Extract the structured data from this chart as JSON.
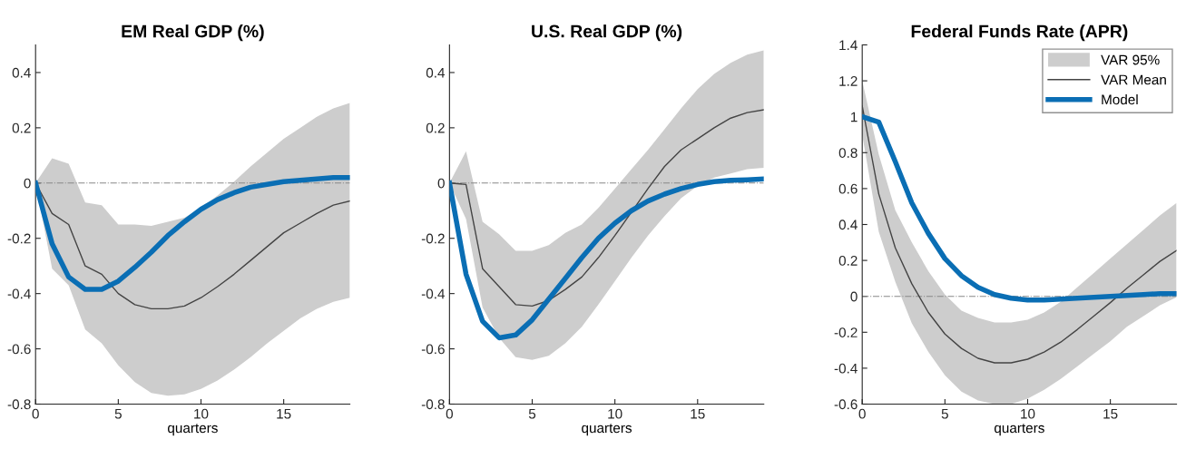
{
  "chart_data": [
    {
      "type": "line",
      "title": "EM Real GDP (%)",
      "xlabel": "quarters",
      "x": [
        0,
        1,
        2,
        3,
        4,
        5,
        6,
        7,
        8,
        9,
        10,
        11,
        12,
        13,
        14,
        15,
        16,
        17,
        18,
        19
      ],
      "xlim": [
        0,
        19
      ],
      "xticks": [
        0,
        5,
        10,
        15
      ],
      "ylim": [
        -0.8,
        0.5
      ],
      "yticks": [
        -0.8,
        -0.6,
        -0.4,
        -0.2,
        0,
        0.2,
        0.4
      ],
      "grid": false,
      "legend": false,
      "ref_lines": [
        {
          "axis": "y",
          "value": 0,
          "color": "#888888",
          "line_style": "dashdot"
        }
      ],
      "series": [
        {
          "color": "#444444",
          "values": [
            0,
            -0.11,
            -0.15,
            -0.3,
            -0.33,
            -0.4,
            -0.44,
            -0.455,
            -0.455,
            -0.445,
            -0.415,
            -0.375,
            -0.33,
            -0.28,
            -0.23,
            -0.18,
            -0.145,
            -0.11,
            -0.08,
            -0.065
          ],
          "lower": [
            0,
            -0.31,
            -0.37,
            -0.53,
            -0.58,
            -0.66,
            -0.72,
            -0.76,
            -0.77,
            -0.765,
            -0.745,
            -0.715,
            -0.675,
            -0.63,
            -0.58,
            -0.535,
            -0.49,
            -0.455,
            -0.43,
            -0.415
          ],
          "upper": [
            0,
            0.09,
            0.07,
            -0.07,
            -0.08,
            -0.15,
            -0.15,
            -0.155,
            -0.14,
            -0.125,
            -0.09,
            -0.045,
            0.005,
            0.06,
            0.11,
            0.16,
            0.2,
            0.24,
            0.27,
            0.29
          ]
        },
        {
          "color": "#0a6eb4",
          "values": [
            0,
            -0.22,
            -0.34,
            -0.385,
            -0.385,
            -0.355,
            -0.305,
            -0.25,
            -0.19,
            -0.14,
            -0.095,
            -0.06,
            -0.035,
            -0.015,
            -0.005,
            0.005,
            0.01,
            0.015,
            0.02,
            0.02
          ]
        }
      ]
    },
    {
      "type": "line",
      "title": "U.S. Real GDP (%)",
      "xlabel": "quarters",
      "x": [
        0,
        1,
        2,
        3,
        4,
        5,
        6,
        7,
        8,
        9,
        10,
        11,
        12,
        13,
        14,
        15,
        16,
        17,
        18,
        19
      ],
      "xlim": [
        0,
        19
      ],
      "xticks": [
        0,
        5,
        10,
        15
      ],
      "ylim": [
        -0.8,
        0.5
      ],
      "yticks": [
        -0.8,
        -0.6,
        -0.4,
        -0.2,
        0,
        0.2,
        0.4
      ],
      "grid": false,
      "legend": false,
      "ref_lines": [
        {
          "axis": "y",
          "value": 0,
          "color": "#888888",
          "line_style": "dashdot"
        }
      ],
      "series": [
        {
          "color": "#444444",
          "values": [
            0,
            -0.005,
            -0.31,
            -0.375,
            -0.44,
            -0.445,
            -0.425,
            -0.385,
            -0.34,
            -0.27,
            -0.19,
            -0.105,
            -0.02,
            0.06,
            0.12,
            0.16,
            0.2,
            0.235,
            0.255,
            0.265
          ],
          "lower": [
            0,
            -0.13,
            -0.45,
            -0.56,
            -0.63,
            -0.64,
            -0.625,
            -0.58,
            -0.52,
            -0.44,
            -0.355,
            -0.27,
            -0.19,
            -0.12,
            -0.055,
            -0.01,
            0.02,
            0.035,
            0.05,
            0.055
          ],
          "upper": [
            0,
            0.115,
            -0.14,
            -0.185,
            -0.245,
            -0.245,
            -0.225,
            -0.18,
            -0.15,
            -0.09,
            -0.02,
            0.05,
            0.12,
            0.195,
            0.27,
            0.34,
            0.395,
            0.435,
            0.465,
            0.48
          ]
        },
        {
          "color": "#0a6eb4",
          "values": [
            0,
            -0.33,
            -0.5,
            -0.56,
            -0.55,
            -0.495,
            -0.42,
            -0.345,
            -0.27,
            -0.2,
            -0.145,
            -0.1,
            -0.065,
            -0.04,
            -0.02,
            -0.005,
            0.005,
            0.01,
            0.012,
            0.015
          ]
        }
      ]
    },
    {
      "type": "line",
      "title": "Federal Funds Rate (APR)",
      "xlabel": "quarters",
      "x": [
        0,
        1,
        2,
        3,
        4,
        5,
        6,
        7,
        8,
        9,
        10,
        11,
        12,
        13,
        14,
        15,
        16,
        17,
        18,
        19
      ],
      "xlim": [
        0,
        19
      ],
      "xticks": [
        0,
        5,
        10,
        15
      ],
      "ylim": [
        -0.6,
        1.4
      ],
      "yticks": [
        -0.6,
        -0.4,
        -0.2,
        0,
        0.2,
        0.4,
        0.6,
        0.8,
        1,
        1.2,
        1.4
      ],
      "grid": false,
      "legend": "top right",
      "annotations": [
        "VAR 95%"
      ],
      "ref_lines": [
        {
          "axis": "y",
          "value": 0,
          "color": "#888888",
          "line_style": "dashdot"
        }
      ],
      "series": [
        {
          "name": "VAR Mean",
          "color": "#444444",
          "values": [
            1.06,
            0.57,
            0.27,
            0.07,
            -0.09,
            -0.21,
            -0.29,
            -0.345,
            -0.37,
            -0.37,
            -0.35,
            -0.31,
            -0.255,
            -0.185,
            -0.11,
            -0.035,
            0.045,
            0.12,
            0.195,
            0.255
          ],
          "lower": [
            0.9,
            0.36,
            0.08,
            -0.15,
            -0.31,
            -0.44,
            -0.53,
            -0.58,
            -0.6,
            -0.6,
            -0.57,
            -0.52,
            -0.46,
            -0.39,
            -0.32,
            -0.25,
            -0.17,
            -0.11,
            -0.05,
            -0.005
          ],
          "upper": [
            1.2,
            0.79,
            0.48,
            0.3,
            0.14,
            0.01,
            -0.08,
            -0.12,
            -0.145,
            -0.145,
            -0.13,
            -0.09,
            -0.03,
            0.05,
            0.13,
            0.21,
            0.29,
            0.37,
            0.45,
            0.52
          ]
        },
        {
          "name": "Model",
          "color": "#0a6eb4",
          "values": [
            1.0,
            0.97,
            0.75,
            0.52,
            0.35,
            0.21,
            0.115,
            0.05,
            0.01,
            -0.01,
            -0.02,
            -0.02,
            -0.015,
            -0.01,
            -0.005,
            0,
            0.005,
            0.01,
            0.015,
            0.015
          ]
        }
      ]
    }
  ]
}
